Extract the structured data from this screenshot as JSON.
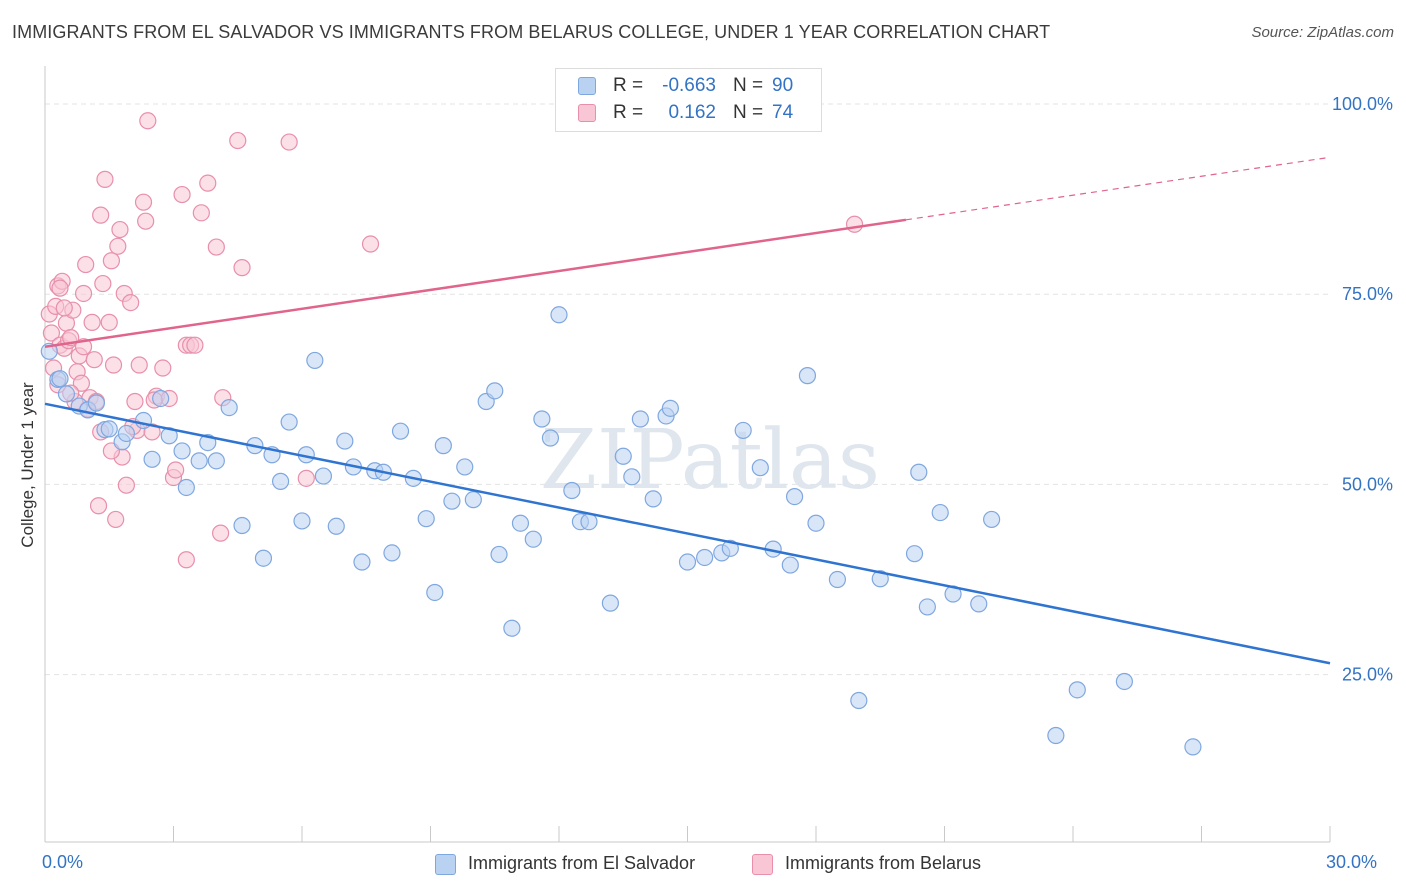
{
  "chart_data": {
    "type": "scatter",
    "title": "IMMIGRANTS FROM EL SALVADOR VS IMMIGRANTS FROM BELARUS COLLEGE, UNDER 1 YEAR CORRELATION CHART",
    "source": "Source: ZipAtlas.com",
    "xlabel": "",
    "ylabel": "College, Under 1 year",
    "xlim": [
      0,
      30
    ],
    "ylim": [
      3,
      105
    ],
    "x_tick_labels": [
      "0.0%",
      "30.0%"
    ],
    "y_ticks": [
      25,
      50,
      75,
      100
    ],
    "y_tick_labels": [
      "25.0%",
      "50.0%",
      "75.0%",
      "100.0%"
    ],
    "grid": true,
    "legend_position": "bottom-center",
    "watermark": "ZIPatlas",
    "stats": [
      {
        "label": "R =",
        "r": "-0.663",
        "n_label": "N =",
        "n": "90"
      },
      {
        "label": "R =",
        "r": "0.162",
        "n_label": "N =",
        "n": "74"
      }
    ],
    "series": [
      {
        "name": "Immigrants from El Salvador",
        "color": "#7fa7df",
        "fill": "#b9d2f2",
        "line_color": "#2f74d0",
        "trend": {
          "x": [
            0,
            30
          ],
          "y": [
            60.6,
            26.5
          ],
          "dashed_from": null
        },
        "points": [
          [
            0.1,
            67.5
          ],
          [
            0.3,
            63.8
          ],
          [
            0.5,
            61.9
          ],
          [
            0.8,
            60.3
          ],
          [
            1.0,
            59.8
          ],
          [
            1.2,
            60.7
          ],
          [
            1.4,
            57.2
          ],
          [
            1.5,
            57.3
          ],
          [
            1.8,
            55.6
          ],
          [
            1.9,
            56.7
          ],
          [
            2.3,
            58.4
          ],
          [
            2.5,
            53.3
          ],
          [
            2.7,
            61.3
          ],
          [
            2.9,
            56.4
          ],
          [
            3.2,
            54.4
          ],
          [
            3.3,
            49.6
          ],
          [
            3.6,
            53.1
          ],
          [
            3.8,
            55.5
          ],
          [
            4.0,
            53.1
          ],
          [
            4.3,
            60.1
          ],
          [
            4.6,
            44.6
          ],
          [
            4.9,
            55.1
          ],
          [
            5.1,
            40.3
          ],
          [
            5.3,
            53.9
          ],
          [
            5.5,
            50.4
          ],
          [
            5.7,
            58.2
          ],
          [
            6.0,
            45.2
          ],
          [
            6.1,
            53.9
          ],
          [
            6.3,
            66.3
          ],
          [
            6.5,
            51.1
          ],
          [
            6.8,
            44.5
          ],
          [
            7.0,
            55.7
          ],
          [
            7.2,
            52.3
          ],
          [
            7.4,
            39.8
          ],
          [
            7.7,
            51.8
          ],
          [
            7.9,
            51.6
          ],
          [
            8.1,
            41.0
          ],
          [
            8.3,
            57.0
          ],
          [
            8.6,
            50.8
          ],
          [
            8.9,
            45.5
          ],
          [
            9.1,
            35.8
          ],
          [
            9.3,
            55.1
          ],
          [
            9.5,
            47.8
          ],
          [
            9.8,
            52.3
          ],
          [
            10.0,
            48.0
          ],
          [
            10.3,
            60.9
          ],
          [
            10.5,
            62.3
          ],
          [
            10.6,
            40.8
          ],
          [
            10.9,
            31.1
          ],
          [
            11.1,
            44.9
          ],
          [
            11.4,
            42.8
          ],
          [
            11.6,
            58.6
          ],
          [
            11.8,
            56.1
          ],
          [
            12.0,
            72.3
          ],
          [
            12.3,
            49.2
          ],
          [
            12.5,
            45.1
          ],
          [
            12.7,
            45.1
          ],
          [
            13.2,
            34.4
          ],
          [
            13.5,
            53.7
          ],
          [
            13.7,
            51.0
          ],
          [
            13.9,
            58.6
          ],
          [
            14.2,
            48.1
          ],
          [
            14.5,
            59.0
          ],
          [
            14.6,
            60.0
          ],
          [
            15.0,
            39.8
          ],
          [
            15.4,
            40.4
          ],
          [
            15.8,
            41.0
          ],
          [
            16.0,
            41.6
          ],
          [
            16.3,
            57.1
          ],
          [
            16.7,
            52.2
          ],
          [
            17.0,
            41.5
          ],
          [
            17.4,
            39.4
          ],
          [
            17.5,
            48.4
          ],
          [
            17.8,
            64.3
          ],
          [
            18.0,
            44.9
          ],
          [
            18.5,
            37.5
          ],
          [
            19.0,
            21.6
          ],
          [
            19.5,
            37.6
          ],
          [
            20.3,
            40.9
          ],
          [
            20.4,
            51.6
          ],
          [
            20.6,
            33.9
          ],
          [
            20.9,
            46.3
          ],
          [
            21.2,
            35.6
          ],
          [
            21.8,
            34.3
          ],
          [
            22.1,
            45.4
          ],
          [
            23.6,
            17.0
          ],
          [
            24.1,
            23.0
          ],
          [
            25.2,
            24.1
          ],
          [
            26.8,
            15.5
          ],
          [
            0.35,
            63.9
          ]
        ]
      },
      {
        "name": "Immigrants from Belarus",
        "color": "#e88fab",
        "fill": "#f8c6d5",
        "line_color": "#e0648c",
        "trend": {
          "x": [
            0,
            30
          ],
          "y": [
            68.1,
            93.0
          ],
          "dashed_from": 20.1
        },
        "points": [
          [
            0.1,
            72.4
          ],
          [
            0.15,
            69.9
          ],
          [
            0.2,
            65.3
          ],
          [
            0.25,
            73.4
          ],
          [
            0.3,
            76.1
          ],
          [
            0.35,
            68.3
          ],
          [
            0.4,
            76.7
          ],
          [
            0.45,
            67.9
          ],
          [
            0.5,
            71.2
          ],
          [
            0.55,
            68.9
          ],
          [
            0.6,
            69.3
          ],
          [
            0.65,
            72.9
          ],
          [
            0.7,
            60.9
          ],
          [
            0.75,
            64.8
          ],
          [
            0.8,
            66.9
          ],
          [
            0.85,
            63.3
          ],
          [
            0.9,
            75.1
          ],
          [
            0.95,
            78.9
          ],
          [
            1.0,
            59.9
          ],
          [
            1.05,
            61.4
          ],
          [
            1.1,
            71.3
          ],
          [
            1.15,
            66.4
          ],
          [
            1.2,
            60.9
          ],
          [
            1.25,
            47.2
          ],
          [
            1.3,
            85.4
          ],
          [
            1.35,
            76.4
          ],
          [
            1.4,
            90.1
          ],
          [
            1.5,
            71.3
          ],
          [
            1.55,
            79.4
          ],
          [
            1.6,
            65.7
          ],
          [
            1.65,
            45.4
          ],
          [
            1.7,
            81.3
          ],
          [
            1.75,
            83.5
          ],
          [
            1.8,
            53.6
          ],
          [
            1.85,
            75.1
          ],
          [
            1.9,
            49.9
          ],
          [
            2.0,
            73.9
          ],
          [
            2.1,
            60.9
          ],
          [
            2.15,
            57.1
          ],
          [
            2.2,
            65.7
          ],
          [
            2.3,
            87.1
          ],
          [
            2.35,
            84.6
          ],
          [
            2.4,
            97.8
          ],
          [
            2.5,
            56.9
          ],
          [
            2.6,
            61.6
          ],
          [
            2.75,
            65.3
          ],
          [
            2.9,
            61.3
          ],
          [
            3.0,
            50.9
          ],
          [
            3.05,
            51.9
          ],
          [
            3.2,
            88.1
          ],
          [
            3.3,
            68.3
          ],
          [
            3.4,
            68.3
          ],
          [
            3.5,
            68.3
          ],
          [
            3.65,
            85.7
          ],
          [
            3.8,
            89.6
          ],
          [
            4.0,
            81.2
          ],
          [
            4.1,
            43.6
          ],
          [
            4.15,
            61.4
          ],
          [
            4.5,
            95.2
          ],
          [
            4.6,
            78.5
          ],
          [
            5.7,
            95.0
          ],
          [
            6.1,
            50.8
          ],
          [
            7.6,
            81.6
          ],
          [
            18.9,
            84.2
          ],
          [
            3.3,
            40.1
          ],
          [
            0.35,
            75.8
          ],
          [
            0.6,
            62.0
          ],
          [
            0.9,
            68.1
          ],
          [
            1.3,
            56.9
          ],
          [
            1.55,
            54.4
          ],
          [
            0.3,
            63.1
          ],
          [
            0.45,
            73.2
          ],
          [
            2.05,
            57.6
          ],
          [
            2.55,
            61.1
          ]
        ]
      }
    ]
  },
  "legend": {
    "series1_label": "Immigrants from El Salvador",
    "series2_label": "Immigrants from Belarus"
  },
  "colors": {
    "accent_text": "#3373c4",
    "grid": "#e3e3e3"
  }
}
